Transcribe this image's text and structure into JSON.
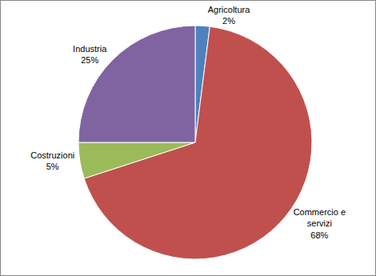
{
  "chart_data": {
    "type": "pie",
    "categories": [
      "Agricoltura",
      "Commercio e servizi",
      "Costruzioni",
      "Industria"
    ],
    "values": [
      2,
      68,
      5,
      25
    ],
    "value_labels": [
      "2%",
      "68%",
      "5%",
      "25%"
    ],
    "colors": [
      "#4f81bd",
      "#c0504d",
      "#9bbb59",
      "#8064a2"
    ],
    "data_labels": true
  }
}
